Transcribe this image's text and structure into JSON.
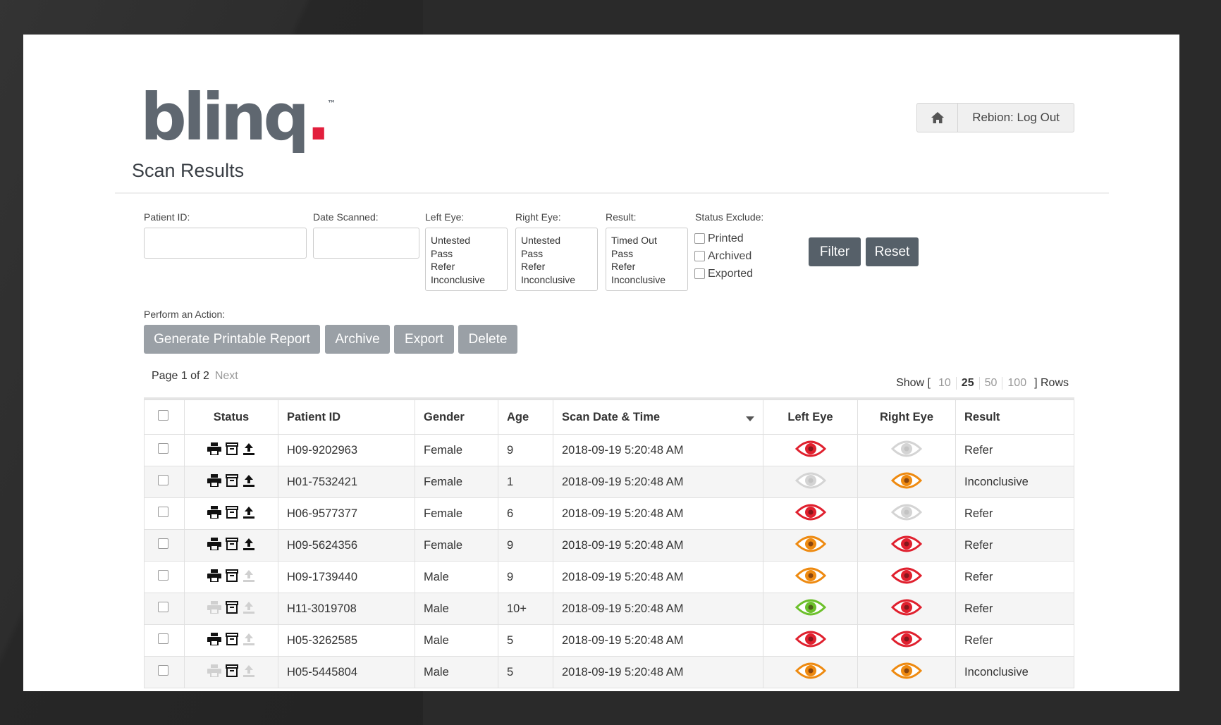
{
  "brand": {
    "name": "blinq",
    "dot": ".",
    "tm": "™"
  },
  "header": {
    "logout_label": "Rebion: Log Out",
    "home_icon": "home-icon"
  },
  "page_title": "Scan Results",
  "filters": {
    "patient_id_label": "Patient ID:",
    "patient_id_value": "",
    "date_scanned_label": "Date Scanned:",
    "date_scanned_value": "",
    "left_eye_label": "Left Eye:",
    "left_eye_options": [
      "Untested",
      "Pass",
      "Refer",
      "Inconclusive"
    ],
    "right_eye_label": "Right Eye:",
    "right_eye_options": [
      "Untested",
      "Pass",
      "Refer",
      "Inconclusive"
    ],
    "result_label": "Result:",
    "result_options": [
      "Timed Out",
      "Pass",
      "Refer",
      "Inconclusive"
    ],
    "status_exclude_label": "Status Exclude:",
    "status_exclude_options": [
      "Printed",
      "Archived",
      "Exported"
    ],
    "filter_label": "Filter",
    "reset_label": "Reset"
  },
  "actions": {
    "label": "Perform an Action:",
    "generate_label": "Generate Printable Report",
    "archive_label": "Archive",
    "export_label": "Export",
    "delete_label": "Delete"
  },
  "pagination": {
    "page_text": "Page 1 of 2",
    "next_label": "Next",
    "show_prefix": "Show [",
    "show_options": [
      "10",
      "25",
      "50",
      "100"
    ],
    "show_selected": "25",
    "show_suffix": "] Rows"
  },
  "table": {
    "headers": {
      "status": "Status",
      "patient_id": "Patient ID",
      "gender": "Gender",
      "age": "Age",
      "scan_date": "Scan Date & Time",
      "left_eye": "Left Eye",
      "right_eye": "Right Eye",
      "result": "Result"
    },
    "eye_colors": {
      "refer": "#e0202e",
      "inconclusive": "#ee8a10",
      "pass": "#6cc02b",
      "untested": "#d4d4d4"
    },
    "rows": [
      {
        "printed": true,
        "archived": true,
        "exported": true,
        "patient_id": "H09-9202963",
        "gender": "Female",
        "age": "9",
        "scan_date": "2018-09-19 5:20:48 AM",
        "left": "refer",
        "right": "untested",
        "result": "Refer"
      },
      {
        "printed": true,
        "archived": true,
        "exported": true,
        "patient_id": "H01-7532421",
        "gender": "Female",
        "age": "1",
        "scan_date": "2018-09-19 5:20:48 AM",
        "left": "untested",
        "right": "inconclusive",
        "result": "Inconclusive"
      },
      {
        "printed": true,
        "archived": true,
        "exported": true,
        "patient_id": "H06-9577377",
        "gender": "Female",
        "age": "6",
        "scan_date": "2018-09-19 5:20:48 AM",
        "left": "refer",
        "right": "untested",
        "result": "Refer"
      },
      {
        "printed": true,
        "archived": true,
        "exported": true,
        "patient_id": "H09-5624356",
        "gender": "Female",
        "age": "9",
        "scan_date": "2018-09-19 5:20:48 AM",
        "left": "inconclusive",
        "right": "refer",
        "result": "Refer"
      },
      {
        "printed": true,
        "archived": true,
        "exported": false,
        "patient_id": "H09-1739440",
        "gender": "Male",
        "age": "9",
        "scan_date": "2018-09-19 5:20:48 AM",
        "left": "inconclusive",
        "right": "refer",
        "result": "Refer"
      },
      {
        "printed": false,
        "archived": true,
        "exported": false,
        "patient_id": "H11-3019708",
        "gender": "Male",
        "age": "10+",
        "scan_date": "2018-09-19 5:20:48 AM",
        "left": "pass",
        "right": "refer",
        "result": "Refer"
      },
      {
        "printed": true,
        "archived": true,
        "exported": false,
        "patient_id": "H05-3262585",
        "gender": "Male",
        "age": "5",
        "scan_date": "2018-09-19 5:20:48 AM",
        "left": "refer",
        "right": "refer",
        "result": "Refer"
      },
      {
        "printed": false,
        "archived": true,
        "exported": false,
        "patient_id": "H05-5445804",
        "gender": "Male",
        "age": "5",
        "scan_date": "2018-09-19 5:20:48 AM",
        "left": "inconclusive",
        "right": "inconclusive",
        "result": "Inconclusive"
      }
    ]
  }
}
